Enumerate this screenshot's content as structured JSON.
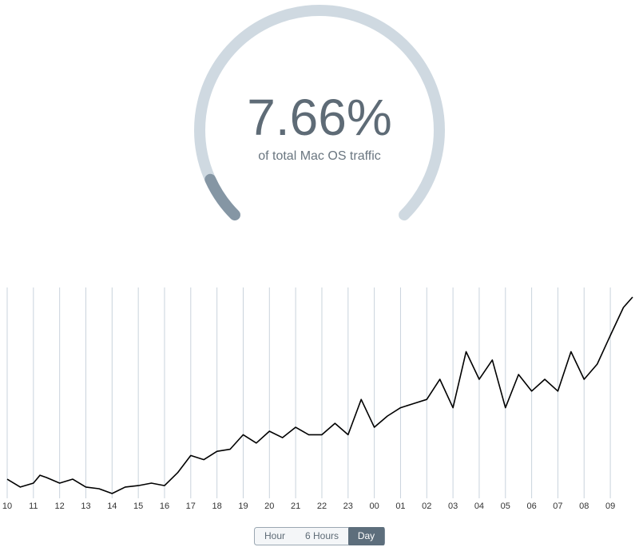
{
  "chart_data": [
    {
      "type": "gauge",
      "value": 7.66,
      "value_label": "7.66%",
      "subtitle": "of total Mac OS traffic",
      "range": [
        0,
        100
      ],
      "track_color": "#cfd9e1",
      "color": "#8596a4"
    },
    {
      "type": "line",
      "x": [
        0,
        0.5,
        1.0,
        1.25,
        1.5,
        2.0,
        2.5,
        3.0,
        3.5,
        4.0,
        4.5,
        5.0,
        5.5,
        6.0,
        6.5,
        7.0,
        7.5,
        8.0,
        8.5,
        9.0,
        9.5,
        10.0,
        10.5,
        11.0,
        11.5,
        12.0,
        12.5,
        13.0,
        13.5,
        14.0,
        14.5,
        15.0,
        15.5,
        16.0,
        16.5,
        17.0,
        17.5,
        18.0,
        18.5,
        19.0,
        19.5,
        20.0,
        20.5,
        21.0,
        21.5,
        22.0,
        22.5,
        23.0,
        23.5,
        23.85
      ],
      "values": [
        9.6,
        5.8,
        7.7,
        11.5,
        10.4,
        7.7,
        9.6,
        5.8,
        5,
        2.7,
        5.8,
        6.5,
        7.7,
        6.5,
        12.7,
        21,
        19,
        23,
        24,
        31,
        27,
        32.7,
        29.6,
        34.6,
        31,
        31,
        36.5,
        31,
        48,
        34.6,
        40,
        44,
        46,
        48,
        57.7,
        44,
        71,
        57.7,
        67,
        44,
        60,
        52,
        57.7,
        52,
        71,
        57.7,
        65,
        78.8,
        92.3,
        97.3
      ],
      "color": "#000000",
      "xlim": [
        0,
        23.85
      ],
      "ylim": [
        0,
        100
      ],
      "xticks": [
        {
          "value": 0,
          "label": "10"
        },
        {
          "value": 1,
          "label": "11"
        },
        {
          "value": 2,
          "label": "12"
        },
        {
          "value": 3,
          "label": "13"
        },
        {
          "value": 4,
          "label": "14"
        },
        {
          "value": 5,
          "label": "15"
        },
        {
          "value": 6,
          "label": "16"
        },
        {
          "value": 7,
          "label": "17"
        },
        {
          "value": 8,
          "label": "18"
        },
        {
          "value": 9,
          "label": "19"
        },
        {
          "value": 10,
          "label": "20"
        },
        {
          "value": 11,
          "label": "21"
        },
        {
          "value": 12,
          "label": "22"
        },
        {
          "value": 13,
          "label": "23"
        },
        {
          "value": 14,
          "label": "00"
        },
        {
          "value": 15,
          "label": "01"
        },
        {
          "value": 16,
          "label": "02"
        },
        {
          "value": 17,
          "label": "03"
        },
        {
          "value": 18,
          "label": "04"
        },
        {
          "value": 19,
          "label": "05"
        },
        {
          "value": 20,
          "label": "06"
        },
        {
          "value": 21,
          "label": "07"
        },
        {
          "value": 22,
          "label": "08"
        },
        {
          "value": 23,
          "label": "09"
        }
      ],
      "grid": true,
      "grid_color": "#c9d3dc"
    }
  ],
  "controls": {
    "options": [
      "Hour",
      "6 Hours",
      "Day"
    ],
    "selected": 2
  }
}
